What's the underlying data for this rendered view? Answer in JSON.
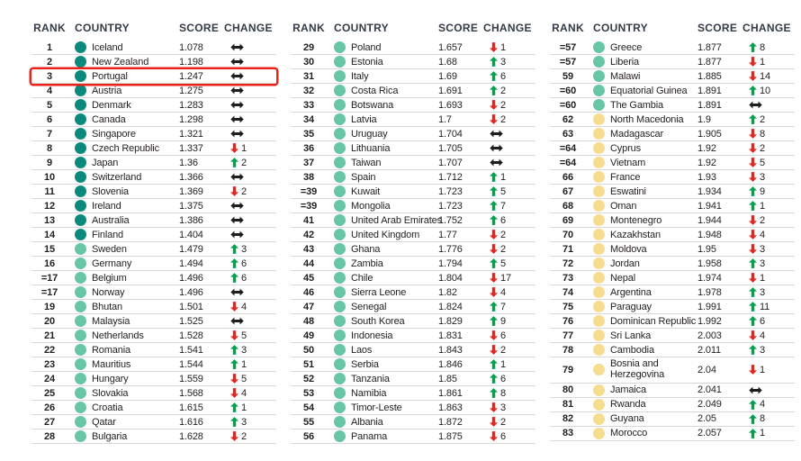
{
  "colors": {
    "background": "#FFFFFF",
    "teal-dark": "#0A8A7B",
    "teal-light": "#69C6A5",
    "yellow": "#F6DC8E",
    "up-green": "#00A14F",
    "down-red": "#E8231C",
    "same-black": "#1D1D1B",
    "header-text": "#333B46",
    "row-text": "#231F20",
    "divider": "#D8D8D8",
    "highlight-red": "#E8231C"
  },
  "header": {
    "rank": "RANK",
    "country": "COUNTRY",
    "score": "SCORE",
    "change": "CHANGE"
  },
  "tables": [
    {
      "rows": [
        {
          "rank": "1",
          "country": "Iceland",
          "score": "1.078",
          "dir": "same",
          "value": "",
          "tier": "teal-dark"
        },
        {
          "rank": "2",
          "country": "New Zealand",
          "score": "1.198",
          "dir": "same",
          "value": "",
          "tier": "teal-dark"
        },
        {
          "rank": "3",
          "country": "Portugal",
          "score": "1.247",
          "dir": "same",
          "value": "",
          "tier": "teal-dark",
          "highlight": true
        },
        {
          "rank": "4",
          "country": "Austria",
          "score": "1.275",
          "dir": "same",
          "value": "",
          "tier": "teal-dark"
        },
        {
          "rank": "5",
          "country": "Denmark",
          "score": "1.283",
          "dir": "same",
          "value": "",
          "tier": "teal-dark"
        },
        {
          "rank": "6",
          "country": "Canada",
          "score": "1.298",
          "dir": "same",
          "value": "",
          "tier": "teal-dark"
        },
        {
          "rank": "7",
          "country": "Singapore",
          "score": "1.321",
          "dir": "same",
          "value": "",
          "tier": "teal-dark"
        },
        {
          "rank": "8",
          "country": "Czech Republic",
          "score": "1.337",
          "dir": "down",
          "value": "1",
          "tier": "teal-dark"
        },
        {
          "rank": "9",
          "country": "Japan",
          "score": "1.36",
          "dir": "up",
          "value": "2",
          "tier": "teal-dark"
        },
        {
          "rank": "10",
          "country": "Switzerland",
          "score": "1.366",
          "dir": "same",
          "value": "",
          "tier": "teal-dark"
        },
        {
          "rank": "11",
          "country": "Slovenia",
          "score": "1.369",
          "dir": "down",
          "value": "2",
          "tier": "teal-dark"
        },
        {
          "rank": "12",
          "country": "Ireland",
          "score": "1.375",
          "dir": "same",
          "value": "",
          "tier": "teal-dark"
        },
        {
          "rank": "13",
          "country": "Australia",
          "score": "1.386",
          "dir": "same",
          "value": "",
          "tier": "teal-dark"
        },
        {
          "rank": "14",
          "country": "Finland",
          "score": "1.404",
          "dir": "same",
          "value": "",
          "tier": "teal-dark"
        },
        {
          "rank": "15",
          "country": "Sweden",
          "score": "1.479",
          "dir": "up",
          "value": "3",
          "tier": "teal-light"
        },
        {
          "rank": "16",
          "country": "Germany",
          "score": "1.494",
          "dir": "up",
          "value": "6",
          "tier": "teal-light"
        },
        {
          "rank": "=17",
          "country": "Belgium",
          "score": "1.496",
          "dir": "up",
          "value": "6",
          "tier": "teal-light"
        },
        {
          "rank": "=17",
          "country": "Norway",
          "score": "1.496",
          "dir": "same",
          "value": "",
          "tier": "teal-light"
        },
        {
          "rank": "19",
          "country": "Bhutan",
          "score": "1.501",
          "dir": "down",
          "value": "4",
          "tier": "teal-light"
        },
        {
          "rank": "20",
          "country": "Malaysia",
          "score": "1.525",
          "dir": "same",
          "value": "",
          "tier": "teal-light"
        },
        {
          "rank": "21",
          "country": "Netherlands",
          "score": "1.528",
          "dir": "down",
          "value": "5",
          "tier": "teal-light"
        },
        {
          "rank": "22",
          "country": "Romania",
          "score": "1.541",
          "dir": "up",
          "value": "3",
          "tier": "teal-light"
        },
        {
          "rank": "23",
          "country": "Mauritius",
          "score": "1.544",
          "dir": "up",
          "value": "1",
          "tier": "teal-light"
        },
        {
          "rank": "24",
          "country": "Hungary",
          "score": "1.559",
          "dir": "down",
          "value": "5",
          "tier": "teal-light"
        },
        {
          "rank": "25",
          "country": "Slovakia",
          "score": "1.568",
          "dir": "down",
          "value": "4",
          "tier": "teal-light"
        },
        {
          "rank": "26",
          "country": "Croatia",
          "score": "1.615",
          "dir": "up",
          "value": "1",
          "tier": "teal-light"
        },
        {
          "rank": "27",
          "country": "Qatar",
          "score": "1.616",
          "dir": "up",
          "value": "3",
          "tier": "teal-light"
        },
        {
          "rank": "28",
          "country": "Bulgaria",
          "score": "1.628",
          "dir": "down",
          "value": "2",
          "tier": "teal-light"
        }
      ]
    },
    {
      "rows": [
        {
          "rank": "29",
          "country": "Poland",
          "score": "1.657",
          "dir": "down",
          "value": "1",
          "tier": "teal-light"
        },
        {
          "rank": "30",
          "country": "Estonia",
          "score": "1.68",
          "dir": "up",
          "value": "3",
          "tier": "teal-light"
        },
        {
          "rank": "31",
          "country": "Italy",
          "score": "1.69",
          "dir": "up",
          "value": "6",
          "tier": "teal-light"
        },
        {
          "rank": "32",
          "country": "Costa Rica",
          "score": "1.691",
          "dir": "up",
          "value": "2",
          "tier": "teal-light"
        },
        {
          "rank": "33",
          "country": "Botswana",
          "score": "1.693",
          "dir": "down",
          "value": "2",
          "tier": "teal-light"
        },
        {
          "rank": "34",
          "country": "Latvia",
          "score": "1.7",
          "dir": "down",
          "value": "2",
          "tier": "teal-light"
        },
        {
          "rank": "35",
          "country": "Uruguay",
          "score": "1.704",
          "dir": "same",
          "value": "",
          "tier": "teal-light"
        },
        {
          "rank": "36",
          "country": "Lithuania",
          "score": "1.705",
          "dir": "same",
          "value": "",
          "tier": "teal-light"
        },
        {
          "rank": "37",
          "country": "Taiwan",
          "score": "1.707",
          "dir": "same",
          "value": "",
          "tier": "teal-light"
        },
        {
          "rank": "38",
          "country": "Spain",
          "score": "1.712",
          "dir": "up",
          "value": "1",
          "tier": "teal-light"
        },
        {
          "rank": "=39",
          "country": "Kuwait",
          "score": "1.723",
          "dir": "up",
          "value": "5",
          "tier": "teal-light"
        },
        {
          "rank": "=39",
          "country": "Mongolia",
          "score": "1.723",
          "dir": "up",
          "value": "7",
          "tier": "teal-light"
        },
        {
          "rank": "41",
          "country": "United Arab Emirates",
          "score": "1.752",
          "dir": "up",
          "value": "6",
          "tier": "teal-light"
        },
        {
          "rank": "42",
          "country": "United Kingdom",
          "score": "1.77",
          "dir": "down",
          "value": "2",
          "tier": "teal-light"
        },
        {
          "rank": "43",
          "country": "Ghana",
          "score": "1.776",
          "dir": "down",
          "value": "2",
          "tier": "teal-light"
        },
        {
          "rank": "44",
          "country": "Zambia",
          "score": "1.794",
          "dir": "up",
          "value": "5",
          "tier": "teal-light"
        },
        {
          "rank": "45",
          "country": "Chile",
          "score": "1.804",
          "dir": "down",
          "value": "17",
          "tier": "teal-light"
        },
        {
          "rank": "46",
          "country": "Sierra Leone",
          "score": "1.82",
          "dir": "down",
          "value": "4",
          "tier": "teal-light"
        },
        {
          "rank": "47",
          "country": "Senegal",
          "score": "1.824",
          "dir": "up",
          "value": "7",
          "tier": "teal-light"
        },
        {
          "rank": "48",
          "country": "South Korea",
          "score": "1.829",
          "dir": "up",
          "value": "9",
          "tier": "teal-light"
        },
        {
          "rank": "49",
          "country": "Indonesia",
          "score": "1.831",
          "dir": "down",
          "value": "6",
          "tier": "teal-light"
        },
        {
          "rank": "50",
          "country": "Laos",
          "score": "1.843",
          "dir": "down",
          "value": "2",
          "tier": "teal-light"
        },
        {
          "rank": "51",
          "country": "Serbia",
          "score": "1.846",
          "dir": "up",
          "value": "1",
          "tier": "teal-light"
        },
        {
          "rank": "52",
          "country": "Tanzania",
          "score": "1.85",
          "dir": "up",
          "value": "6",
          "tier": "teal-light"
        },
        {
          "rank": "53",
          "country": "Namibia",
          "score": "1.861",
          "dir": "up",
          "value": "8",
          "tier": "teal-light"
        },
        {
          "rank": "54",
          "country": "Timor-Leste",
          "score": "1.863",
          "dir": "down",
          "value": "3",
          "tier": "teal-light"
        },
        {
          "rank": "55",
          "country": "Albania",
          "score": "1.872",
          "dir": "down",
          "value": "2",
          "tier": "teal-light"
        },
        {
          "rank": "56",
          "country": "Panama",
          "score": "1.875",
          "dir": "down",
          "value": "6",
          "tier": "teal-light"
        }
      ]
    },
    {
      "rows": [
        {
          "rank": "=57",
          "country": "Greece",
          "score": "1.877",
          "dir": "up",
          "value": "8",
          "tier": "teal-light"
        },
        {
          "rank": "=57",
          "country": "Liberia",
          "score": "1.877",
          "dir": "down",
          "value": "1",
          "tier": "teal-light"
        },
        {
          "rank": "59",
          "country": "Malawi",
          "score": "1.885",
          "dir": "down",
          "value": "14",
          "tier": "teal-light"
        },
        {
          "rank": "=60",
          "country": "Equatorial Guinea",
          "score": "1.891",
          "dir": "up",
          "value": "10",
          "tier": "teal-light"
        },
        {
          "rank": "=60",
          "country": "The Gambia",
          "score": "1.891",
          "dir": "same",
          "value": "",
          "tier": "teal-light"
        },
        {
          "rank": "62",
          "country": "North Macedonia",
          "score": "1.9",
          "dir": "up",
          "value": "2",
          "tier": "yellow"
        },
        {
          "rank": "63",
          "country": "Madagascar",
          "score": "1.905",
          "dir": "down",
          "value": "8",
          "tier": "yellow"
        },
        {
          "rank": "=64",
          "country": "Cyprus",
          "score": "1.92",
          "dir": "down",
          "value": "2",
          "tier": "yellow"
        },
        {
          "rank": "=64",
          "country": "Vietnam",
          "score": "1.92",
          "dir": "down",
          "value": "5",
          "tier": "yellow"
        },
        {
          "rank": "66",
          "country": "France",
          "score": "1.93",
          "dir": "down",
          "value": "3",
          "tier": "yellow"
        },
        {
          "rank": "67",
          "country": "Eswatini",
          "score": "1.934",
          "dir": "up",
          "value": "9",
          "tier": "yellow"
        },
        {
          "rank": "68",
          "country": "Oman",
          "score": "1.941",
          "dir": "up",
          "value": "1",
          "tier": "yellow"
        },
        {
          "rank": "69",
          "country": "Montenegro",
          "score": "1.944",
          "dir": "down",
          "value": "2",
          "tier": "yellow"
        },
        {
          "rank": "70",
          "country": "Kazakhstan",
          "score": "1.948",
          "dir": "down",
          "value": "4",
          "tier": "yellow"
        },
        {
          "rank": "71",
          "country": "Moldova",
          "score": "1.95",
          "dir": "down",
          "value": "3",
          "tier": "yellow"
        },
        {
          "rank": "72",
          "country": "Jordan",
          "score": "1.958",
          "dir": "up",
          "value": "3",
          "tier": "yellow"
        },
        {
          "rank": "73",
          "country": "Nepal",
          "score": "1.974",
          "dir": "down",
          "value": "1",
          "tier": "yellow"
        },
        {
          "rank": "74",
          "country": "Argentina",
          "score": "1.978",
          "dir": "up",
          "value": "3",
          "tier": "yellow"
        },
        {
          "rank": "75",
          "country": "Paraguay",
          "score": "1.991",
          "dir": "up",
          "value": "11",
          "tier": "yellow"
        },
        {
          "rank": "76",
          "country": "Dominican Republic",
          "score": "1.992",
          "dir": "up",
          "value": "6",
          "tier": "yellow"
        },
        {
          "rank": "77",
          "country": "Sri Lanka",
          "score": "2.003",
          "dir": "down",
          "value": "4",
          "tier": "yellow"
        },
        {
          "rank": "78",
          "country": "Cambodia",
          "score": "2.011",
          "dir": "up",
          "value": "3",
          "tier": "yellow"
        },
        {
          "rank": "79",
          "country": "Bosnia and Herzegovina",
          "score": "2.04",
          "dir": "down",
          "value": "1",
          "tier": "yellow",
          "wrap": true
        },
        {
          "rank": "80",
          "country": "Jamaica",
          "score": "2.041",
          "dir": "same",
          "value": "",
          "tier": "yellow"
        },
        {
          "rank": "81",
          "country": "Rwanda",
          "score": "2.049",
          "dir": "up",
          "value": "4",
          "tier": "yellow"
        },
        {
          "rank": "82",
          "country": "Guyana",
          "score": "2.05",
          "dir": "up",
          "value": "8",
          "tier": "yellow"
        },
        {
          "rank": "83",
          "country": "Morocco",
          "score": "2.057",
          "dir": "up",
          "value": "1",
          "tier": "yellow"
        }
      ]
    }
  ]
}
